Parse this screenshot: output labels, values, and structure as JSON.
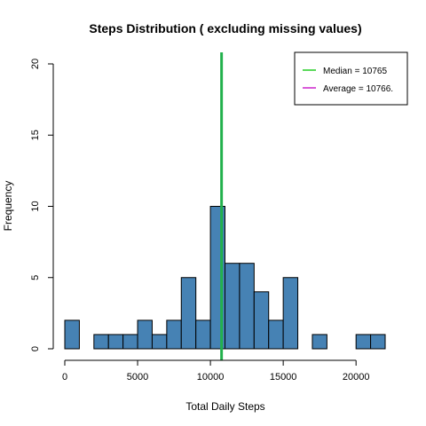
{
  "chart_data": {
    "type": "bar",
    "title": "Steps Distribution ( excluding missing values)",
    "xlabel": "Total Daily Steps",
    "ylabel": "Frequency",
    "xlim": [
      0,
      22000
    ],
    "ylim": [
      0,
      20
    ],
    "xticks": [
      0,
      5000,
      10000,
      15000,
      20000
    ],
    "yticks": [
      0,
      5,
      10,
      15,
      20
    ],
    "bins": [
      {
        "start": 0,
        "end": 1000,
        "count": 2
      },
      {
        "start": 1000,
        "end": 2000,
        "count": 0
      },
      {
        "start": 2000,
        "end": 3000,
        "count": 1
      },
      {
        "start": 3000,
        "end": 4000,
        "count": 1
      },
      {
        "start": 4000,
        "end": 5000,
        "count": 1
      },
      {
        "start": 5000,
        "end": 6000,
        "count": 2
      },
      {
        "start": 6000,
        "end": 7000,
        "count": 1
      },
      {
        "start": 7000,
        "end": 8000,
        "count": 2
      },
      {
        "start": 8000,
        "end": 9000,
        "count": 5
      },
      {
        "start": 9000,
        "end": 10000,
        "count": 2
      },
      {
        "start": 10000,
        "end": 11000,
        "count": 10
      },
      {
        "start": 11000,
        "end": 12000,
        "count": 6
      },
      {
        "start": 12000,
        "end": 13000,
        "count": 6
      },
      {
        "start": 13000,
        "end": 14000,
        "count": 4
      },
      {
        "start": 14000,
        "end": 15000,
        "count": 2
      },
      {
        "start": 15000,
        "end": 16000,
        "count": 5
      },
      {
        "start": 16000,
        "end": 17000,
        "count": 0
      },
      {
        "start": 17000,
        "end": 18000,
        "count": 1
      },
      {
        "start": 18000,
        "end": 19000,
        "count": 0
      },
      {
        "start": 19000,
        "end": 20000,
        "count": 0
      },
      {
        "start": 20000,
        "end": 21000,
        "count": 1
      },
      {
        "start": 21000,
        "end": 22000,
        "count": 1
      }
    ],
    "bar_color": "#4682B4",
    "bar_border_color": "#000000",
    "reference_lines": [
      {
        "label": "Median = 10765",
        "value": 10765,
        "color": "#22B14C"
      },
      {
        "label": "Average = 10766.",
        "value": 10766.19,
        "color": "#CC22CC"
      }
    ],
    "legend": {
      "position": "top-right",
      "entries": [
        {
          "label": "Median = 10765",
          "color": "#22CC22"
        },
        {
          "label": "Average = 10766.",
          "color": "#CC22CC"
        }
      ]
    }
  }
}
